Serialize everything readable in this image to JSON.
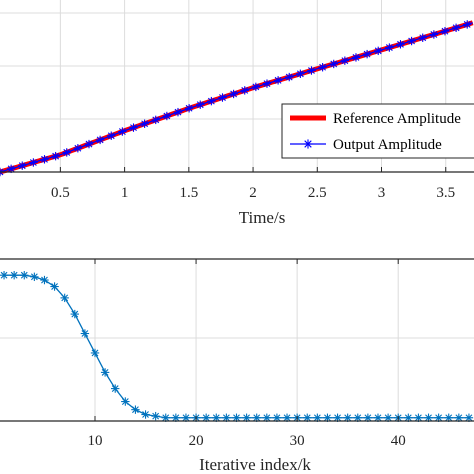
{
  "chart_data": [
    {
      "type": "line",
      "xlabel": "Time/s",
      "ylabel": "",
      "xlim": [
        0.03,
        3.72
      ],
      "ylim": [
        0.0,
        1.0
      ],
      "xticks": [
        "0.5",
        "1",
        "1.5",
        "2",
        "2.5",
        "3",
        "3.5"
      ],
      "xtick_values": [
        0.5,
        1,
        1.5,
        2,
        2.5,
        3,
        3.5
      ],
      "grid": true,
      "legend": {
        "placement": "right",
        "entries": [
          "Reference Amplitude",
          "Output Amplitude"
        ]
      },
      "series": [
        {
          "name": "Reference Amplitude",
          "color": "#ff0000",
          "marker": "none",
          "x": [
            0.03,
            0.5,
            1.0,
            1.5,
            2.0,
            2.5,
            3.0,
            3.5,
            3.72
          ],
          "y": [
            0.0,
            0.1,
            0.24,
            0.37,
            0.49,
            0.6,
            0.71,
            0.82,
            0.87
          ]
        },
        {
          "name": "Output Amplitude",
          "color": "#0000ff",
          "marker": "asterisk",
          "x": [
            0.03,
            0.5,
            1.0,
            1.5,
            2.0,
            2.5,
            3.0,
            3.5,
            3.72
          ],
          "y": [
            0.0,
            0.1,
            0.24,
            0.37,
            0.49,
            0.6,
            0.71,
            0.82,
            0.87
          ]
        }
      ]
    },
    {
      "type": "line",
      "xlabel": "Iterative index/k",
      "ylabel": "",
      "xlim": [
        0.6,
        47.5
      ],
      "ylim": [
        0.0,
        1.0
      ],
      "xticks": [
        "10",
        "20",
        "30",
        "40"
      ],
      "xtick_values": [
        10,
        20,
        30,
        40
      ],
      "grid": true,
      "series": [
        {
          "color": "#0072bd",
          "marker": "asterisk",
          "x": [
            1,
            2,
            3,
            4,
            5,
            6,
            7,
            8,
            9,
            10,
            11,
            12,
            13,
            14,
            15,
            16,
            17,
            18,
            19,
            20,
            21,
            22,
            23,
            24,
            25,
            26,
            27,
            28,
            29,
            30,
            31,
            32,
            33,
            34,
            35,
            36,
            37,
            38,
            39,
            40,
            41,
            42,
            43,
            44,
            45,
            46,
            47
          ],
          "y": [
            0.9,
            0.9,
            0.9,
            0.89,
            0.87,
            0.83,
            0.76,
            0.66,
            0.54,
            0.42,
            0.3,
            0.2,
            0.12,
            0.07,
            0.04,
            0.03,
            0.02,
            0.02,
            0.02,
            0.02,
            0.02,
            0.02,
            0.02,
            0.02,
            0.02,
            0.02,
            0.02,
            0.02,
            0.02,
            0.02,
            0.02,
            0.02,
            0.02,
            0.02,
            0.02,
            0.02,
            0.02,
            0.02,
            0.02,
            0.02,
            0.02,
            0.02,
            0.02,
            0.02,
            0.02,
            0.02,
            0.02
          ]
        }
      ]
    }
  ]
}
